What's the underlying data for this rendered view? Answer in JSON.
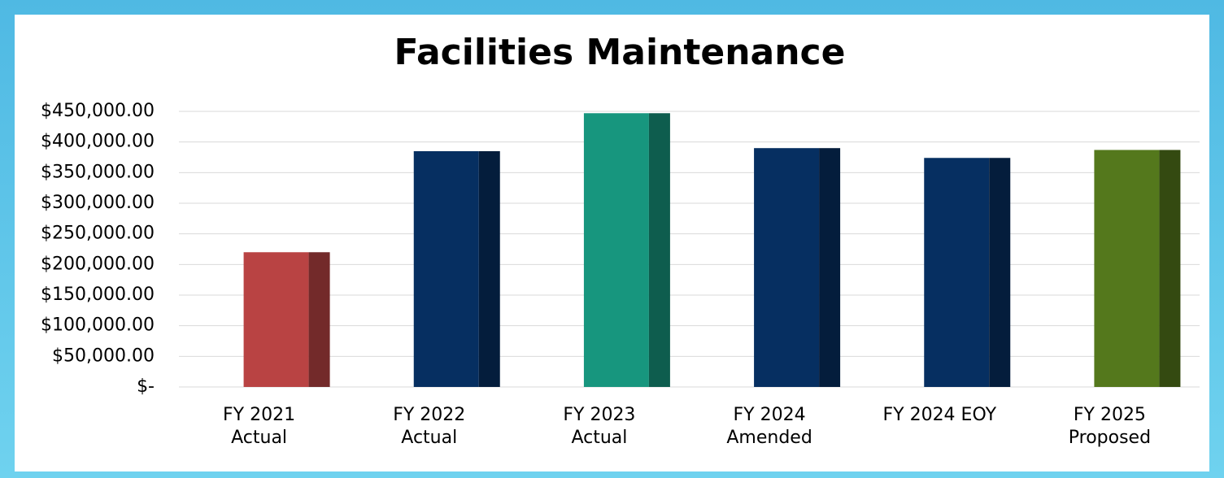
{
  "chart_data": {
    "type": "bar",
    "title": "Facilities Maintenance",
    "categories": [
      "FY 2021\nActual",
      "FY 2022\nActual",
      "FY 2023\nActual",
      "FY 2024\nAmended",
      "FY 2024 EOY",
      "FY 2025\nProposed"
    ],
    "values": [
      220000,
      385000,
      447000,
      390000,
      374000,
      387000
    ],
    "colors": [
      "#b94343",
      "#062f61",
      "#17967e",
      "#062f61",
      "#062f61",
      "#54781c"
    ],
    "ylim": [
      0,
      450000
    ],
    "yticks": [
      {
        "value": 0,
        "label": "$-"
      },
      {
        "value": 50000,
        "label": "$50,000.00"
      },
      {
        "value": 100000,
        "label": "$100,000.00"
      },
      {
        "value": 150000,
        "label": "$150,000.00"
      },
      {
        "value": 200000,
        "label": "$200,000.00"
      },
      {
        "value": 250000,
        "label": "$250,000.00"
      },
      {
        "value": 300000,
        "label": "$300,000.00"
      },
      {
        "value": 350000,
        "label": "$350,000.00"
      },
      {
        "value": 400000,
        "label": "$400,000.00"
      },
      {
        "value": 450000,
        "label": "$450,000.00"
      }
    ],
    "grid": true
  }
}
